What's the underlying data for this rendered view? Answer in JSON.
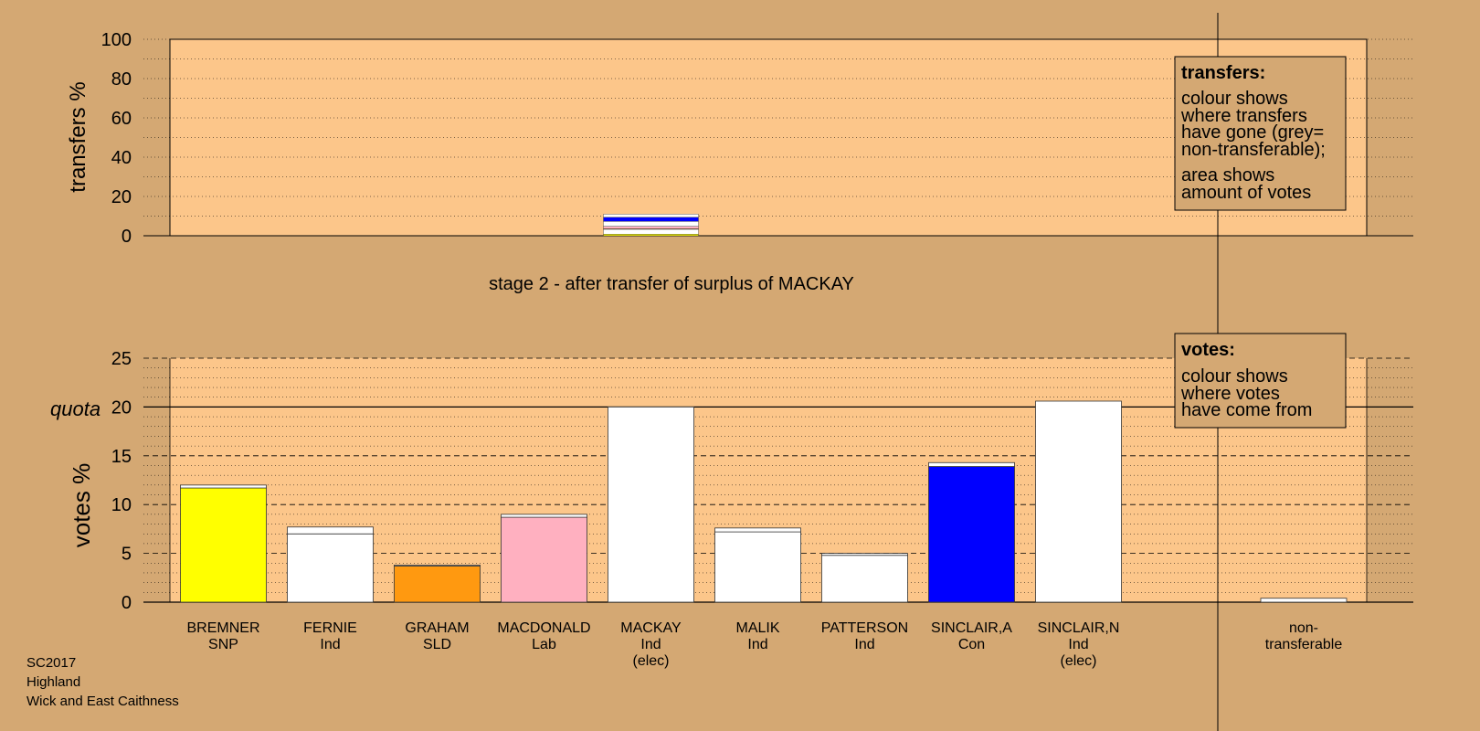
{
  "stage_title": "stage 2 - after transfer of surplus of MACKAY",
  "footer": [
    "SC2017",
    "Highland",
    "Wick and East Caithness"
  ],
  "transfers_legend": {
    "title": "transfers:",
    "lines": [
      "colour shows",
      "where transfers",
      "have gone (grey=",
      "non-transferable);"
    ],
    "lines2": [
      "area shows",
      "amount of votes"
    ]
  },
  "votes_legend": {
    "title": "votes:",
    "lines": [
      "colour shows",
      "where votes",
      "have come from"
    ]
  },
  "colors": {
    "background": "#d4a873",
    "plot_area": "#fcc68a",
    "SNP": "#ffff00",
    "Ind": "#ffffff",
    "SLD": "#ff9910",
    "Lab": "#ffb0c0",
    "Con": "#0000ff",
    "non_transferable": "#ffffff"
  },
  "chart_data": [
    {
      "type": "bar",
      "name": "transfers",
      "ylabel": "transfers %",
      "ylim": [
        0,
        100
      ],
      "yticks": [
        0,
        20,
        40,
        60,
        80,
        100
      ],
      "grid": true,
      "source_candidate": "MACKAY",
      "transfer_stack": [
        {
          "party": "SNP",
          "value": 0.8
        },
        {
          "party": "Ind",
          "value": 2.5
        },
        {
          "party": "SLD",
          "value": 0.3
        },
        {
          "party": "Lab",
          "value": 1.2
        },
        {
          "party": "Ind",
          "value": 2.5
        },
        {
          "party": "Con",
          "value": 2.1
        },
        {
          "party": "Ind",
          "value": 1.6
        }
      ]
    },
    {
      "type": "bar",
      "name": "votes",
      "ylabel": "votes %",
      "ylim": [
        0,
        25
      ],
      "yticks": [
        0,
        5,
        10,
        15,
        20,
        25
      ],
      "quota": 20,
      "quota_label": "quota",
      "grid": true,
      "candidates": [
        {
          "name": "BREMNER",
          "party": "SNP",
          "note": "",
          "base": 11.7,
          "transfer": 0.3
        },
        {
          "name": "FERNIE",
          "party": "Ind",
          "note": "",
          "base": 7.0,
          "transfer": 0.7
        },
        {
          "name": "GRAHAM",
          "party": "SLD",
          "note": "",
          "base": 3.7,
          "transfer": 0.1
        },
        {
          "name": "MACDONALD",
          "party": "Lab",
          "note": "",
          "base": 8.7,
          "transfer": 0.3
        },
        {
          "name": "MACKAY",
          "party": "Ind",
          "note": "(elec)",
          "base": 20.0,
          "transfer": 0
        },
        {
          "name": "MALIK",
          "party": "Ind",
          "note": "",
          "base": 7.2,
          "transfer": 0.4
        },
        {
          "name": "PATTERSON",
          "party": "Ind",
          "note": "",
          "base": 4.8,
          "transfer": 0.2
        },
        {
          "name": "SINCLAIR,A",
          "party": "Con",
          "note": "",
          "base": 13.9,
          "transfer": 0.4
        },
        {
          "name": "SINCLAIR,N",
          "party": "Ind",
          "note": "(elec)",
          "base": 20.6,
          "transfer": 0
        }
      ],
      "non_transferable": {
        "label1": "non-",
        "label2": "transferable",
        "value": 0.4
      }
    }
  ]
}
